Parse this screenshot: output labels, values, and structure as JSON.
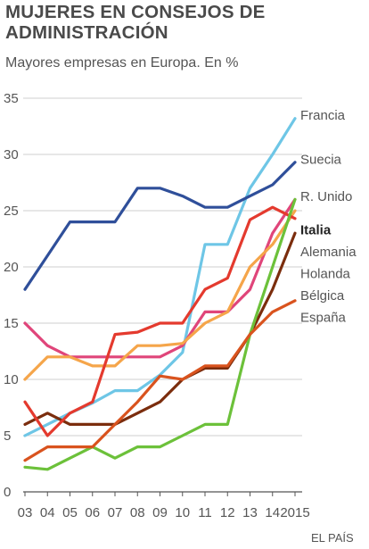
{
  "chart_data": {
    "type": "line",
    "title": "MUJERES EN CONSEJOS DE ADMINISTRACIÓN",
    "subtitle": "Mayores empresas en Europa. En %",
    "source": "EL PAÍS",
    "x": [
      2003,
      2004,
      2005,
      2006,
      2007,
      2008,
      2009,
      2010,
      2011,
      2012,
      2013,
      2014,
      2015
    ],
    "x_tick_labels": [
      "03",
      "04",
      "05",
      "06",
      "07",
      "08",
      "09",
      "10",
      "11",
      "12",
      "13",
      "14",
      "2015"
    ],
    "ylim": [
      0,
      35
    ],
    "yticks": [
      0,
      5,
      10,
      15,
      20,
      25,
      30,
      35
    ],
    "grid": "horizontal",
    "xlabel": "",
    "ylabel": "",
    "legend": "direct labels at line ends",
    "series": [
      {
        "name": "Francia",
        "color": "#6ec6e6",
        "values": [
          5.0,
          6.0,
          7.0,
          7.9,
          9.0,
          9.0,
          10.4,
          12.4,
          22.0,
          22.0,
          27.0,
          30.0,
          33.2
        ]
      },
      {
        "name": "Suecia",
        "color": "#2f4f9a",
        "values": [
          18.0,
          21.0,
          24.0,
          24.0,
          24.0,
          27.0,
          27.0,
          26.3,
          25.3,
          25.3,
          26.3,
          27.3,
          29.3
        ]
      },
      {
        "name": "R. Unido",
        "color": "#e0457a",
        "values": [
          15.0,
          13.0,
          12.0,
          12.0,
          12.0,
          12.0,
          12.0,
          13.0,
          16.0,
          16.0,
          18.0,
          23.0,
          26.0
        ]
      },
      {
        "name": "Italia",
        "color": "#7b2d0d",
        "bold": true,
        "values": [
          6.0,
          7.0,
          6.0,
          6.0,
          6.0,
          7.0,
          8.0,
          10.0,
          11.0,
          11.0,
          14.0,
          18.0,
          23.0
        ]
      },
      {
        "name": "Alemania",
        "color": "#f5a54a",
        "values": [
          10.0,
          12.0,
          12.0,
          11.2,
          11.2,
          13.0,
          13.0,
          13.2,
          15.0,
          16.0,
          20.0,
          22.0,
          25.0
        ]
      },
      {
        "name": "Holanda",
        "color": "#e43a2e",
        "values": [
          8.0,
          5.0,
          7.0,
          8.0,
          14.0,
          14.2,
          15.0,
          15.0,
          18.0,
          19.0,
          24.2,
          25.3,
          24.3
        ]
      },
      {
        "name": "Bélgica",
        "color": "#6cc13a",
        "values": [
          2.2,
          2.0,
          3.0,
          4.0,
          3.0,
          4.0,
          4.0,
          5.0,
          6.0,
          6.0,
          14.0,
          20.0,
          26.0
        ]
      },
      {
        "name": "España",
        "color": "#d9531e",
        "values": [
          2.8,
          4.0,
          4.0,
          4.0,
          6.0,
          8.0,
          10.3,
          10.0,
          11.2,
          11.2,
          14.0,
          16.0,
          17.0
        ]
      }
    ]
  }
}
